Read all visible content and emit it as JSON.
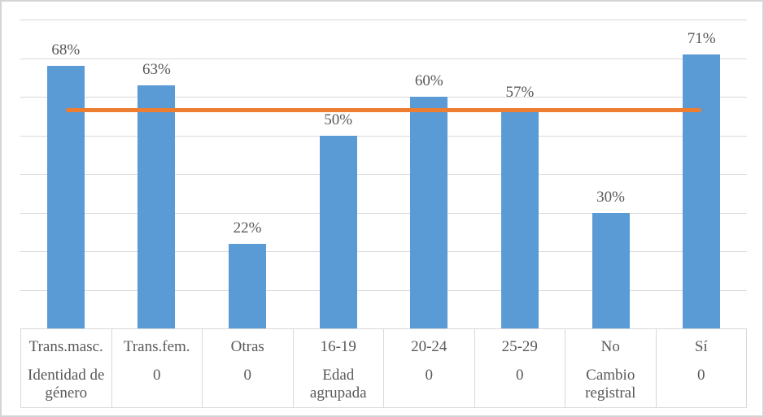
{
  "chart_data": {
    "type": "bar",
    "categories": [
      "Trans.masc.",
      "Trans.fem.",
      "Otras",
      "16-19",
      "20-24",
      "25-29",
      "No",
      "Sí"
    ],
    "group_labels": [
      "Identidad de género",
      "0",
      "0",
      "Edad agrupada",
      "0",
      "0",
      "Cambio registral",
      "0"
    ],
    "values": [
      68,
      63,
      22,
      50,
      60,
      57,
      30,
      71
    ],
    "data_labels": [
      "68%",
      "63%",
      "22%",
      "50%",
      "60%",
      "57%",
      "30%",
      "71%"
    ],
    "title": "",
    "xlabel": "",
    "ylabel": "",
    "ylim": [
      0,
      80
    ],
    "gridline_step": 10,
    "grid": true,
    "legend": false,
    "y_axis_labels_visible": false,
    "reference_line": {
      "value": 56.5,
      "color": "#ed7d31"
    },
    "colors": {
      "bar": "#5b9bd5",
      "gridline": "#d9d9d9",
      "table_border": "#d9d9d9",
      "text": "#595959",
      "chart_border": "#d5d5d5",
      "background": "#ffffff"
    }
  }
}
